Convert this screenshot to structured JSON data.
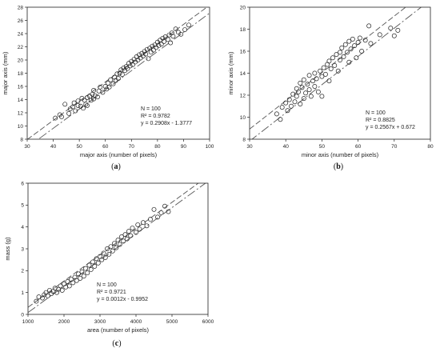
{
  "chart_data": [
    {
      "panel_label": "(a)",
      "type": "scatter",
      "xlabel": "major axis (number of pixels)",
      "ylabel": "major axis (mm)",
      "xlim": [
        30,
        100
      ],
      "ylim": [
        8,
        28
      ],
      "xticks": [
        30,
        40,
        50,
        60,
        70,
        80,
        90,
        100
      ],
      "yticks": [
        8,
        10,
        12,
        14,
        16,
        18,
        20,
        22,
        24,
        26,
        28
      ],
      "stats": [
        "N = 100",
        "R² = 0.9782",
        "y = 0.2908x - 1.3777"
      ],
      "fit": {
        "slope": 0.2908,
        "intercept": -1.3777
      },
      "band_offset": 0.6,
      "grid": false,
      "points": [
        [
          40.8,
          11.2
        ],
        [
          42.5,
          11.7
        ],
        [
          43.2,
          11.4
        ],
        [
          44.5,
          13.3
        ],
        [
          46.0,
          11.9
        ],
        [
          46.5,
          12.6
        ],
        [
          47.5,
          12.9
        ],
        [
          48.0,
          13.5
        ],
        [
          48.5,
          12.3
        ],
        [
          49.5,
          13.1
        ],
        [
          49.5,
          13.8
        ],
        [
          50.5,
          13.0
        ],
        [
          51.0,
          14.2
        ],
        [
          51.5,
          12.7
        ],
        [
          52.0,
          13.9
        ],
        [
          52.5,
          13.3
        ],
        [
          53.0,
          14.3
        ],
        [
          53.0,
          13.1
        ],
        [
          54.0,
          14.5
        ],
        [
          54.5,
          13.9
        ],
        [
          55.0,
          14.8
        ],
        [
          55.5,
          14.1
        ],
        [
          55.5,
          15.4
        ],
        [
          56.0,
          14.6
        ],
        [
          57.0,
          14.4
        ],
        [
          57.5,
          15.3
        ],
        [
          58.0,
          15.9
        ],
        [
          59.0,
          15.1
        ],
        [
          60.0,
          16.0
        ],
        [
          60.5,
          15.6
        ],
        [
          61.0,
          16.5
        ],
        [
          61.5,
          15.9
        ],
        [
          62.0,
          17.0
        ],
        [
          63.0,
          16.4
        ],
        [
          63.5,
          17.4
        ],
        [
          64.0,
          16.9
        ],
        [
          64.5,
          17.9
        ],
        [
          65.0,
          17.2
        ],
        [
          65.5,
          18.0
        ],
        [
          66.0,
          18.5
        ],
        [
          66.5,
          17.8
        ],
        [
          67.0,
          18.8
        ],
        [
          67.5,
          18.4
        ],
        [
          68.0,
          19.0
        ],
        [
          68.5,
          18.7
        ],
        [
          69.0,
          19.5
        ],
        [
          69.5,
          19.1
        ],
        [
          70.0,
          19.8
        ],
        [
          70.5,
          19.3
        ],
        [
          71.0,
          20.1
        ],
        [
          71.5,
          19.7
        ],
        [
          72.0,
          20.5
        ],
        [
          72.5,
          20.0
        ],
        [
          73.0,
          20.8
        ],
        [
          73.5,
          20.3
        ],
        [
          74.0,
          21.0
        ],
        [
          74.5,
          20.6
        ],
        [
          75.0,
          21.3
        ],
        [
          75.5,
          20.9
        ],
        [
          76.0,
          21.6
        ],
        [
          76.5,
          20.2
        ],
        [
          77.0,
          21.8
        ],
        [
          77.5,
          21.2
        ],
        [
          78.0,
          22.1
        ],
        [
          78.5,
          21.5
        ],
        [
          79.0,
          22.3
        ],
        [
          79.5,
          21.9
        ],
        [
          80.0,
          22.7
        ],
        [
          80.5,
          22.2
        ],
        [
          81.0,
          23.0
        ],
        [
          81.5,
          22.4
        ],
        [
          82.0,
          23.3
        ],
        [
          82.5,
          22.8
        ],
        [
          83.0,
          23.5
        ],
        [
          84.0,
          23.1
        ],
        [
          84.5,
          23.8
        ],
        [
          85.0,
          22.6
        ],
        [
          85.5,
          24.1
        ],
        [
          86.0,
          23.6
        ],
        [
          87.0,
          24.7
        ],
        [
          88.0,
          24.2
        ],
        [
          89.0,
          23.9
        ],
        [
          90.5,
          24.6
        ],
        [
          92.0,
          25.3
        ]
      ]
    },
    {
      "panel_label": "(b)",
      "type": "scatter",
      "xlabel": "minor axis (number of pixels)",
      "ylabel": "minor axis (mm)",
      "xlim": [
        30,
        80
      ],
      "ylim": [
        8,
        20
      ],
      "xticks": [
        30,
        40,
        50,
        60,
        70,
        80
      ],
      "yticks": [
        8,
        10,
        12,
        14,
        16,
        18,
        20
      ],
      "stats": [
        "N = 100",
        "R² = 0.8825",
        "y = 0.2567x + 0.672"
      ],
      "fit": {
        "slope": 0.2567,
        "intercept": 0.672
      },
      "band_offset": 0.55,
      "grid": false,
      "points": [
        [
          37.5,
          10.3
        ],
        [
          38.5,
          9.8
        ],
        [
          39.0,
          10.9
        ],
        [
          40.0,
          11.3
        ],
        [
          40.5,
          10.6
        ],
        [
          41.0,
          11.6
        ],
        [
          41.5,
          11.0
        ],
        [
          42.0,
          12.1
        ],
        [
          42.5,
          11.4
        ],
        [
          43.0,
          12.6
        ],
        [
          43.0,
          11.9
        ],
        [
          43.5,
          12.3
        ],
        [
          44.0,
          13.1
        ],
        [
          44.0,
          11.2
        ],
        [
          44.5,
          12.7
        ],
        [
          45.0,
          13.4
        ],
        [
          45.0,
          11.7
        ],
        [
          45.5,
          12.2
        ],
        [
          46.0,
          13.0
        ],
        [
          46.5,
          12.5
        ],
        [
          46.5,
          13.8
        ],
        [
          47.0,
          11.9
        ],
        [
          47.5,
          13.3
        ],
        [
          48.0,
          12.8
        ],
        [
          48.0,
          14.0
        ],
        [
          48.5,
          13.5
        ],
        [
          49.0,
          12.3
        ],
        [
          49.5,
          14.2
        ],
        [
          50.0,
          13.7
        ],
        [
          50.0,
          11.9
        ],
        [
          50.5,
          14.5
        ],
        [
          51.0,
          13.9
        ],
        [
          51.5,
          14.8
        ],
        [
          52.0,
          13.3
        ],
        [
          52.0,
          15.1
        ],
        [
          52.5,
          14.4
        ],
        [
          53.0,
          15.4
        ],
        [
          53.5,
          14.7
        ],
        [
          54.0,
          15.7
        ],
        [
          54.5,
          14.2
        ],
        [
          55.0,
          15.9
        ],
        [
          55.0,
          15.2
        ],
        [
          55.5,
          16.3
        ],
        [
          56.0,
          15.5
        ],
        [
          56.5,
          16.6
        ],
        [
          57.0,
          15.9
        ],
        [
          57.5,
          16.9
        ],
        [
          57.5,
          15.0
        ],
        [
          58.0,
          16.2
        ],
        [
          58.5,
          17.1
        ],
        [
          59.0,
          16.5
        ],
        [
          59.5,
          15.4
        ],
        [
          60.0,
          16.8
        ],
        [
          60.5,
          17.2
        ],
        [
          61.0,
          16.0
        ],
        [
          62.0,
          17.0
        ],
        [
          63.0,
          18.3
        ],
        [
          63.5,
          16.7
        ],
        [
          66.0,
          17.5
        ],
        [
          69.0,
          18.1
        ],
        [
          70.0,
          17.4
        ],
        [
          71.0,
          17.9
        ]
      ]
    },
    {
      "panel_label": "(c)",
      "type": "scatter",
      "xlabel": "area (number of pixels)",
      "ylabel": "mass (g)",
      "xlim": [
        1000,
        6000
      ],
      "ylim": [
        0,
        6
      ],
      "xticks": [
        1000,
        2000,
        3000,
        4000,
        5000,
        6000
      ],
      "yticks": [
        0,
        1,
        2,
        3,
        4,
        5,
        6
      ],
      "stats": [
        "N = 100",
        "R² = 0.9721",
        "y = 0.0012x - 0.9952"
      ],
      "fit": {
        "slope": 0.0012,
        "intercept": -0.9952
      },
      "band_offset": 0.12,
      "grid": false,
      "points": [
        [
          1230,
          0.6
        ],
        [
          1300,
          0.8
        ],
        [
          1400,
          0.75
        ],
        [
          1450,
          0.9
        ],
        [
          1500,
          1.0
        ],
        [
          1550,
          0.85
        ],
        [
          1600,
          1.1
        ],
        [
          1650,
          0.95
        ],
        [
          1700,
          1.05
        ],
        [
          1750,
          1.2
        ],
        [
          1800,
          1.0
        ],
        [
          1850,
          1.15
        ],
        [
          1900,
          1.3
        ],
        [
          1950,
          1.1
        ],
        [
          2000,
          1.4
        ],
        [
          2050,
          1.25
        ],
        [
          2100,
          1.5
        ],
        [
          2150,
          1.3
        ],
        [
          2200,
          1.6
        ],
        [
          2250,
          1.45
        ],
        [
          2300,
          1.7
        ],
        [
          2350,
          1.55
        ],
        [
          2400,
          1.85
        ],
        [
          2450,
          1.65
        ],
        [
          2500,
          1.95
        ],
        [
          2550,
          1.75
        ],
        [
          2600,
          2.1
        ],
        [
          2650,
          1.9
        ],
        [
          2700,
          2.25
        ],
        [
          2750,
          2.05
        ],
        [
          2800,
          2.4
        ],
        [
          2850,
          2.2
        ],
        [
          2900,
          2.55
        ],
        [
          2950,
          2.35
        ],
        [
          3000,
          2.65
        ],
        [
          3050,
          2.5
        ],
        [
          3100,
          2.8
        ],
        [
          3150,
          2.6
        ],
        [
          3200,
          3.0
        ],
        [
          3250,
          2.75
        ],
        [
          3300,
          3.1
        ],
        [
          3350,
          2.9
        ],
        [
          3400,
          3.25
        ],
        [
          3450,
          3.05
        ],
        [
          3500,
          3.4
        ],
        [
          3550,
          3.2
        ],
        [
          3600,
          3.55
        ],
        [
          3650,
          3.35
        ],
        [
          3700,
          3.65
        ],
        [
          3750,
          3.45
        ],
        [
          3800,
          3.8
        ],
        [
          3850,
          3.6
        ],
        [
          3900,
          3.95
        ],
        [
          4000,
          3.75
        ],
        [
          4050,
          4.1
        ],
        [
          4100,
          3.9
        ],
        [
          4200,
          4.2
        ],
        [
          4300,
          4.05
        ],
        [
          4400,
          4.35
        ],
        [
          4500,
          4.8
        ],
        [
          4600,
          4.45
        ],
        [
          4700,
          4.65
        ],
        [
          4800,
          4.95
        ],
        [
          4900,
          4.7
        ]
      ]
    }
  ]
}
